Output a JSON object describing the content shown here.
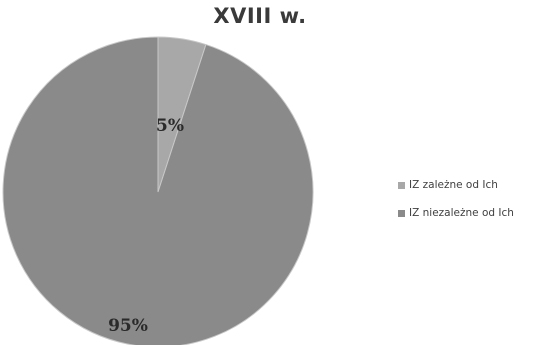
{
  "chart_data": {
    "type": "pie",
    "title": "XVIII w.",
    "categories": [
      "IZ zależne od Ich",
      "IZ niezależne od Ich"
    ],
    "values": [
      5,
      95
    ],
    "data_labels": [
      "5%",
      "95%"
    ],
    "colors": [
      "#a8a8a8",
      "#8a8a8a"
    ],
    "legend_position": "right"
  }
}
